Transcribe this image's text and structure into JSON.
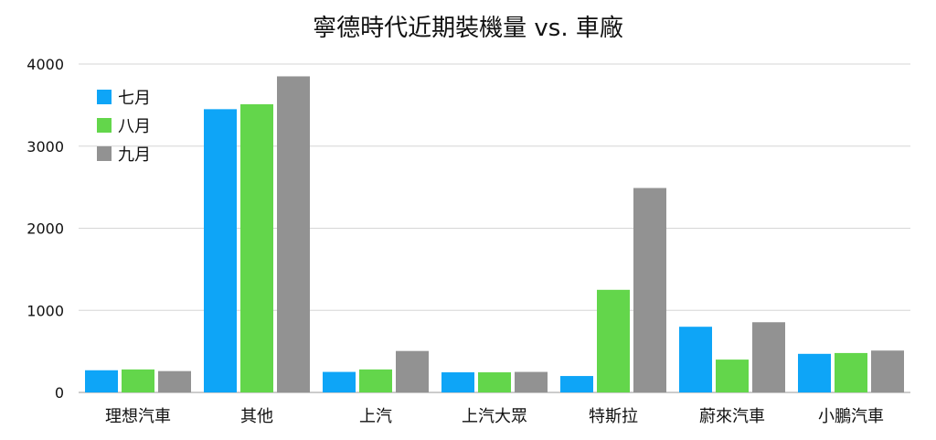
{
  "chart_data": {
    "type": "bar",
    "title": "寧德時代近期裝機量 vs. 車廠",
    "xlabel": "",
    "ylabel": "",
    "ylim": [
      0,
      4000
    ],
    "yticks": [
      0,
      1000,
      2000,
      3000,
      4000
    ],
    "grid": true,
    "legend_position": "top-left",
    "categories": [
      "理想汽車",
      "其他",
      "上汽",
      "上汽大眾",
      "特斯拉",
      "蔚來汽車",
      "小鵬汽車"
    ],
    "series": [
      {
        "name": "七月",
        "color": "#0ea5f7",
        "values": [
          270,
          3450,
          250,
          245,
          200,
          800,
          470
        ]
      },
      {
        "name": "八月",
        "color": "#63d64b",
        "values": [
          280,
          3510,
          280,
          245,
          1250,
          400,
          480
        ]
      },
      {
        "name": "九月",
        "color": "#929292",
        "values": [
          260,
          3850,
          505,
          250,
          2490,
          855,
          510
        ]
      }
    ]
  }
}
